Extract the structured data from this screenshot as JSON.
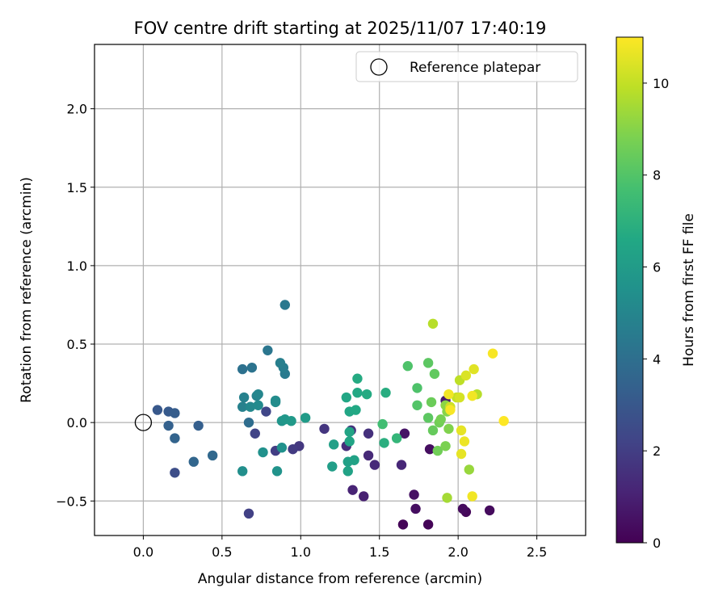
{
  "chart_data": {
    "type": "scatter",
    "title": "FOV centre drift starting at 2025/11/07 17:40:19",
    "xlabel": "Angular distance from reference (arcmin)",
    "ylabel": "Rotation from reference (arcmin)",
    "xlim": [
      -0.31,
      2.81
    ],
    "ylim": [
      -0.72,
      2.41
    ],
    "xticks": [
      0.0,
      0.5,
      1.0,
      1.5,
      2.0,
      2.5
    ],
    "xtick_labels": [
      "0.0",
      "0.5",
      "1.0",
      "1.5",
      "2.0",
      "2.5"
    ],
    "yticks": [
      -0.5,
      0.0,
      0.5,
      1.0,
      1.5,
      2.0
    ],
    "ytick_labels": [
      "−0.5",
      "0.0",
      "0.5",
      "1.0",
      "1.5",
      "2.0"
    ],
    "grid": true,
    "legend": {
      "position": "top-right",
      "entries": [
        "Reference platepar"
      ]
    },
    "reference_point": {
      "x": 0.0,
      "y": 0.0,
      "label": "Reference platepar"
    },
    "colorbar": {
      "label": "Hours from first FF file",
      "range": [
        0,
        11
      ],
      "ticks": [
        0,
        2,
        4,
        6,
        8,
        10
      ],
      "tick_labels": [
        "0",
        "2",
        "4",
        "6",
        "8",
        "10"
      ],
      "colormap": "viridis"
    },
    "points": [
      {
        "x": 1.65,
        "y": -0.65,
        "t": 0.1
      },
      {
        "x": 1.81,
        "y": -0.65,
        "t": 0.1
      },
      {
        "x": 2.05,
        "y": -0.57,
        "t": 0.2
      },
      {
        "x": 2.2,
        "y": -0.56,
        "t": 0.3
      },
      {
        "x": 2.03,
        "y": -0.55,
        "t": 0.3
      },
      {
        "x": 1.73,
        "y": -0.55,
        "t": 0.4
      },
      {
        "x": 1.72,
        "y": -0.46,
        "t": 0.5
      },
      {
        "x": 1.82,
        "y": -0.17,
        "t": 0.4
      },
      {
        "x": 1.66,
        "y": -0.07,
        "t": 0.6
      },
      {
        "x": 1.92,
        "y": 0.14,
        "t": 0.8
      },
      {
        "x": 1.4,
        "y": -0.47,
        "t": 1.0
      },
      {
        "x": 1.33,
        "y": -0.43,
        "t": 1.1
      },
      {
        "x": 1.64,
        "y": -0.27,
        "t": 1.2
      },
      {
        "x": 1.47,
        "y": -0.27,
        "t": 1.3
      },
      {
        "x": 1.43,
        "y": -0.21,
        "t": 1.3
      },
      {
        "x": 1.29,
        "y": -0.15,
        "t": 1.4
      },
      {
        "x": 1.43,
        "y": -0.07,
        "t": 1.5
      },
      {
        "x": 1.32,
        "y": -0.05,
        "t": 1.6
      },
      {
        "x": 1.15,
        "y": -0.04,
        "t": 1.7
      },
      {
        "x": 0.99,
        "y": -0.15,
        "t": 1.8
      },
      {
        "x": 0.95,
        "y": -0.17,
        "t": 1.9
      },
      {
        "x": 0.84,
        "y": -0.18,
        "t": 2.0
      },
      {
        "x": 0.67,
        "y": -0.58,
        "t": 2.1
      },
      {
        "x": 0.71,
        "y": -0.07,
        "t": 2.2
      },
      {
        "x": 0.78,
        "y": 0.07,
        "t": 2.3
      },
      {
        "x": 0.2,
        "y": -0.32,
        "t": 2.6
      },
      {
        "x": 0.09,
        "y": 0.08,
        "t": 3.0
      },
      {
        "x": 0.16,
        "y": 0.07,
        "t": 3.1
      },
      {
        "x": 0.2,
        "y": 0.06,
        "t": 3.2
      },
      {
        "x": 0.35,
        "y": -0.02,
        "t": 3.3
      },
      {
        "x": 0.16,
        "y": -0.02,
        "t": 3.4
      },
      {
        "x": 0.2,
        "y": -0.1,
        "t": 3.5
      },
      {
        "x": 0.32,
        "y": -0.25,
        "t": 3.6
      },
      {
        "x": 0.44,
        "y": -0.21,
        "t": 3.7
      },
      {
        "x": 0.67,
        "y": 0.0,
        "t": 3.9
      },
      {
        "x": 0.63,
        "y": 0.34,
        "t": 4.1
      },
      {
        "x": 0.69,
        "y": 0.35,
        "t": 4.2
      },
      {
        "x": 0.79,
        "y": 0.46,
        "t": 4.3
      },
      {
        "x": 0.9,
        "y": 0.75,
        "t": 4.4
      },
      {
        "x": 0.9,
        "y": 0.31,
        "t": 4.5
      },
      {
        "x": 0.89,
        "y": 0.35,
        "t": 4.6
      },
      {
        "x": 0.87,
        "y": 0.38,
        "t": 4.7
      },
      {
        "x": 0.64,
        "y": 0.16,
        "t": 4.8
      },
      {
        "x": 0.63,
        "y": 0.1,
        "t": 4.8
      },
      {
        "x": 0.72,
        "y": 0.17,
        "t": 4.9
      },
      {
        "x": 0.73,
        "y": 0.18,
        "t": 5.0
      },
      {
        "x": 0.68,
        "y": 0.1,
        "t": 5.1
      },
      {
        "x": 0.73,
        "y": 0.11,
        "t": 5.2
      },
      {
        "x": 0.84,
        "y": 0.13,
        "t": 5.3
      },
      {
        "x": 0.84,
        "y": 0.14,
        "t": 5.3
      },
      {
        "x": 0.63,
        "y": -0.31,
        "t": 5.4
      },
      {
        "x": 0.76,
        "y": -0.19,
        "t": 5.5
      },
      {
        "x": 0.88,
        "y": -0.16,
        "t": 5.5
      },
      {
        "x": 0.85,
        "y": -0.31,
        "t": 5.6
      },
      {
        "x": 0.88,
        "y": 0.01,
        "t": 5.7
      },
      {
        "x": 0.9,
        "y": 0.02,
        "t": 5.8
      },
      {
        "x": 0.94,
        "y": 0.01,
        "t": 5.9
      },
      {
        "x": 1.03,
        "y": 0.03,
        "t": 6.0
      },
      {
        "x": 1.2,
        "y": -0.28,
        "t": 6.1
      },
      {
        "x": 1.21,
        "y": -0.14,
        "t": 6.2
      },
      {
        "x": 1.3,
        "y": -0.25,
        "t": 6.2
      },
      {
        "x": 1.3,
        "y": -0.31,
        "t": 6.3
      },
      {
        "x": 1.34,
        "y": -0.24,
        "t": 6.3
      },
      {
        "x": 1.31,
        "y": -0.12,
        "t": 6.4
      },
      {
        "x": 1.31,
        "y": -0.06,
        "t": 6.4
      },
      {
        "x": 1.31,
        "y": 0.07,
        "t": 6.5
      },
      {
        "x": 1.29,
        "y": 0.16,
        "t": 6.5
      },
      {
        "x": 1.35,
        "y": 0.08,
        "t": 6.6
      },
      {
        "x": 1.36,
        "y": 0.19,
        "t": 6.6
      },
      {
        "x": 1.36,
        "y": 0.28,
        "t": 6.7
      },
      {
        "x": 1.42,
        "y": 0.18,
        "t": 6.7
      },
      {
        "x": 1.54,
        "y": 0.19,
        "t": 6.8
      },
      {
        "x": 1.53,
        "y": -0.13,
        "t": 6.9
      },
      {
        "x": 1.61,
        "y": -0.1,
        "t": 7.2
      },
      {
        "x": 1.52,
        "y": -0.01,
        "t": 7.6
      },
      {
        "x": 1.68,
        "y": 0.36,
        "t": 7.9
      },
      {
        "x": 1.74,
        "y": 0.22,
        "t": 7.9
      },
      {
        "x": 1.74,
        "y": 0.11,
        "t": 8.0
      },
      {
        "x": 1.81,
        "y": 0.03,
        "t": 8.2
      },
      {
        "x": 1.81,
        "y": 0.38,
        "t": 8.2
      },
      {
        "x": 1.85,
        "y": 0.31,
        "t": 8.3
      },
      {
        "x": 1.84,
        "y": -0.05,
        "t": 8.4
      },
      {
        "x": 1.83,
        "y": 0.13,
        "t": 8.5
      },
      {
        "x": 1.87,
        "y": -0.18,
        "t": 8.6
      },
      {
        "x": 1.88,
        "y": 0.0,
        "t": 8.6
      },
      {
        "x": 1.89,
        "y": 0.02,
        "t": 8.7
      },
      {
        "x": 1.92,
        "y": -0.15,
        "t": 8.8
      },
      {
        "x": 1.94,
        "y": -0.04,
        "t": 8.9
      },
      {
        "x": 1.93,
        "y": 0.07,
        "t": 9.0
      },
      {
        "x": 1.92,
        "y": 0.11,
        "t": 9.1
      },
      {
        "x": 2.07,
        "y": -0.3,
        "t": 9.3
      },
      {
        "x": 1.93,
        "y": -0.48,
        "t": 9.5
      },
      {
        "x": 1.84,
        "y": 0.63,
        "t": 9.8
      },
      {
        "x": 2.01,
        "y": 0.27,
        "t": 9.9
      },
      {
        "x": 2.12,
        "y": 0.18,
        "t": 9.8
      },
      {
        "x": 1.99,
        "y": 0.16,
        "t": 10.0
      },
      {
        "x": 1.95,
        "y": 0.1,
        "t": 10.2
      },
      {
        "x": 2.01,
        "y": 0.16,
        "t": 10.3
      },
      {
        "x": 2.05,
        "y": 0.3,
        "t": 10.4
      },
      {
        "x": 2.1,
        "y": 0.34,
        "t": 10.5
      },
      {
        "x": 2.02,
        "y": -0.2,
        "t": 10.6
      },
      {
        "x": 2.02,
        "y": -0.05,
        "t": 10.6
      },
      {
        "x": 2.04,
        "y": -0.12,
        "t": 10.7
      },
      {
        "x": 2.09,
        "y": -0.47,
        "t": 10.8
      },
      {
        "x": 2.09,
        "y": 0.17,
        "t": 10.8
      },
      {
        "x": 1.94,
        "y": 0.18,
        "t": 10.8
      },
      {
        "x": 1.95,
        "y": 0.08,
        "t": 10.9
      },
      {
        "x": 2.22,
        "y": 0.44,
        "t": 10.9
      },
      {
        "x": 2.29,
        "y": 0.01,
        "t": 11.0
      }
    ]
  }
}
